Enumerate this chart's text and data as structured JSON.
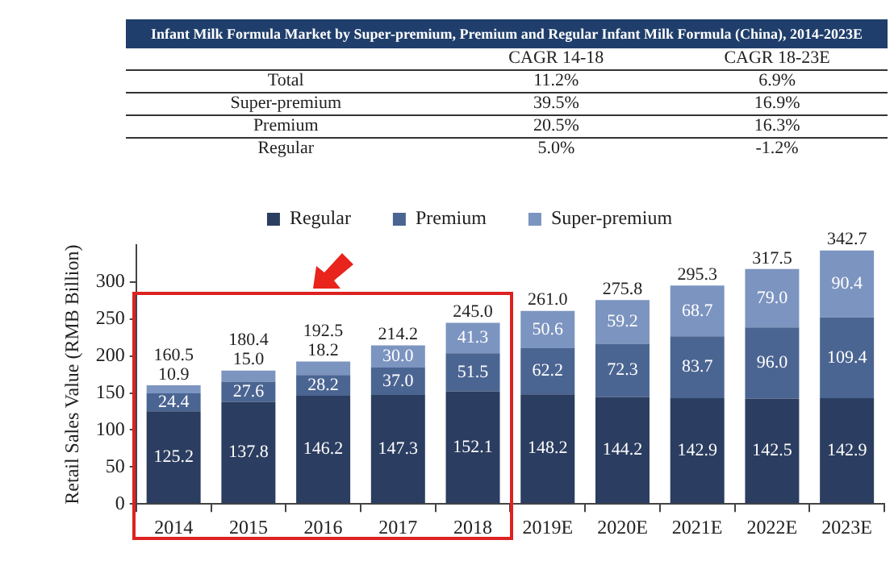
{
  "chart_data": {
    "type": "bar",
    "title": "Infant Milk Formula Market by Super-premium, Premium and Regular Infant Milk Formula (China), 2014-2023E",
    "ylabel": "Retail Sales Value (RMB Billion)",
    "categories": [
      "2014",
      "2015",
      "2016",
      "2017",
      "2018",
      "2019E",
      "2020E",
      "2021E",
      "2022E",
      "2023E"
    ],
    "stacked": true,
    "series": [
      {
        "name": "Regular",
        "color": "#2b3d60",
        "values": [
          125.2,
          137.8,
          146.2,
          147.3,
          152.1,
          148.2,
          144.2,
          142.9,
          142.5,
          142.9
        ],
        "value_labels": [
          "125.2",
          "137.8",
          "146.2",
          "147.3",
          "152.1",
          "148.2",
          "144.2",
          "142.9",
          "142.5",
          "142.9"
        ]
      },
      {
        "name": "Premium",
        "color": "#4b6592",
        "values": [
          24.4,
          27.6,
          28.2,
          37.0,
          51.5,
          62.2,
          72.3,
          83.7,
          96.0,
          109.4
        ],
        "value_labels": [
          "24.4",
          "27.6",
          "28.2",
          "37.0",
          "51.5",
          "62.2",
          "72.3",
          "83.7",
          "96.0",
          "109.4"
        ]
      },
      {
        "name": "Super-premium",
        "color": "#7c94c0",
        "values": [
          10.9,
          15.0,
          18.2,
          30.0,
          41.3,
          50.6,
          59.2,
          68.7,
          79.0,
          90.4
        ],
        "value_labels": [
          "10.9",
          "15.0",
          "18.2",
          "30.0",
          "41.3",
          "50.6",
          "59.2",
          "68.7",
          "79.0",
          "90.4"
        ]
      }
    ],
    "totals": [
      "160.5",
      "180.4",
      "192.5",
      "214.2",
      "245.0",
      "261.0",
      "275.8",
      "295.3",
      "317.5",
      "342.7"
    ],
    "ylim": [
      0,
      350
    ],
    "yticks": [
      0,
      50,
      100,
      150,
      200,
      250,
      300
    ],
    "grid": false,
    "legend": "top",
    "annotations": [
      "CAGR 14-18",
      "CAGR 18-23E",
      "Total",
      "11.2%",
      "6.9%",
      "Super-premium",
      "39.5%",
      "16.9%",
      "Premium",
      "20.5%",
      "16.3%",
      "Regular",
      "5.0%",
      "-1.2%"
    ]
  }
}
